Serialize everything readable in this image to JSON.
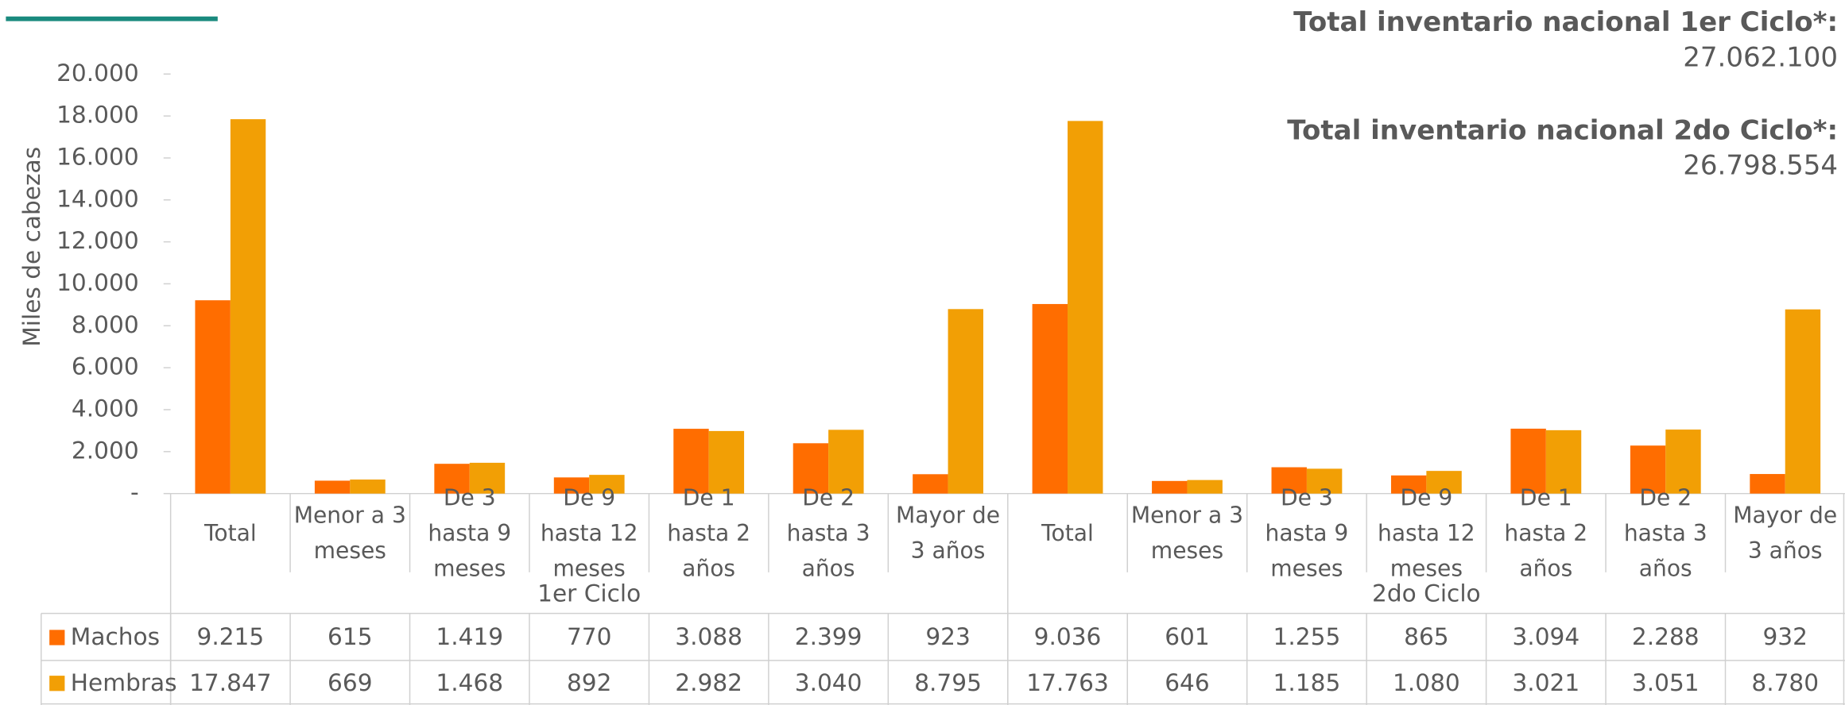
{
  "chart_data": {
    "type": "bar",
    "y_label": "Miles de cabezas",
    "groups": [
      {
        "name": "1er Ciclo",
        "categories": [
          "Total",
          "Menor a 3 meses",
          "De 3 hasta 9 meses",
          "De 9 hasta 12 meses",
          "De 1 hasta 2 años",
          "De 2 hasta 3 años",
          "Mayor de 3 años"
        ]
      },
      {
        "name": "2do Ciclo",
        "categories": [
          "Total",
          "Menor a 3 meses",
          "De 3 hasta 9 meses",
          "De 9 hasta 12 meses",
          "De 1 hasta 2 años",
          "De 2 hasta 3 años",
          "Mayor de 3 años"
        ]
      }
    ],
    "series": [
      {
        "name": "Machos",
        "color": "#ff6d00",
        "values": [
          9215,
          615,
          1419,
          770,
          3088,
          2399,
          923,
          9036,
          601,
          1255,
          865,
          3094,
          2288,
          932
        ],
        "value_labels": [
          "9.215",
          "615",
          "1.419",
          "770",
          "3.088",
          "2.399",
          "923",
          "9.036",
          "601",
          "1.255",
          "865",
          "3.094",
          "2.288",
          "932"
        ]
      },
      {
        "name": "Hembras",
        "color": "#f29f05",
        "values": [
          17847,
          669,
          1468,
          892,
          2982,
          3040,
          8795,
          17763,
          646,
          1185,
          1080,
          3021,
          3051,
          8780
        ],
        "value_labels": [
          "17.847",
          "669",
          "1.468",
          "892",
          "2.982",
          "3.040",
          "8.795",
          "17.763",
          "646",
          "1.185",
          "1.080",
          "3.021",
          "3.051",
          "8.780"
        ]
      }
    ],
    "ylim": [
      0,
      20000
    ],
    "yticks": [
      {
        "value": 0,
        "label": "-"
      },
      {
        "value": 2000,
        "label": "2.000"
      },
      {
        "value": 4000,
        "label": "4.000"
      },
      {
        "value": 6000,
        "label": "6.000"
      },
      {
        "value": 8000,
        "label": "8.000"
      },
      {
        "value": 10000,
        "label": "10.000"
      },
      {
        "value": 12000,
        "label": "12.000"
      },
      {
        "value": 14000,
        "label": "14.000"
      },
      {
        "value": 16000,
        "label": "16.000"
      },
      {
        "value": 18000,
        "label": "18.000"
      },
      {
        "value": 20000,
        "label": "20.000"
      }
    ],
    "annotations": [
      {
        "title": "Total inventario nacional 1er Ciclo*:",
        "value": "27.062.100"
      },
      {
        "title": "Total inventario nacional 2do Ciclo*:",
        "value": "26.798.554"
      }
    ]
  }
}
